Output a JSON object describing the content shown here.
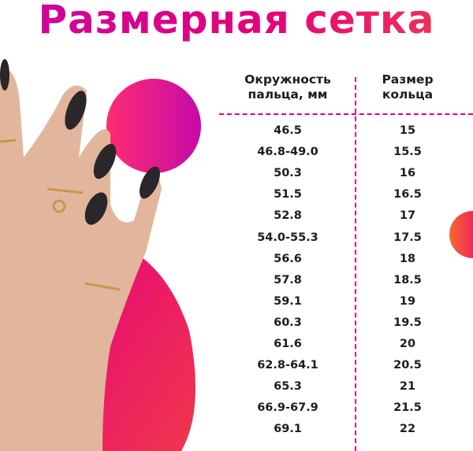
{
  "title": "Размерная сетка",
  "table": {
    "headers": [
      "Окружность пальца, мм",
      "Размер кольца"
    ],
    "header_lines": [
      [
        "Окружность",
        "пальца, мм"
      ],
      [
        "Размер",
        "кольца"
      ]
    ],
    "rows": [
      [
        "46.5",
        "15"
      ],
      [
        "46.8-49.0",
        "15.5"
      ],
      [
        "50.3",
        "16"
      ],
      [
        "51.5",
        "16.5"
      ],
      [
        "52.8",
        "17"
      ],
      [
        "54.0-55.3",
        "17.5"
      ],
      [
        "56.6",
        "18"
      ],
      [
        "57.8",
        "18.5"
      ],
      [
        "59.1",
        "19"
      ],
      [
        "60.3",
        "19.5"
      ],
      [
        "61.6",
        "20"
      ],
      [
        "62.8-64.1",
        "20.5"
      ],
      [
        "65.3",
        "21"
      ],
      [
        "66.9-67.9",
        "21.5"
      ],
      [
        "69.1",
        "22"
      ]
    ]
  },
  "colors": {
    "accent": "#e6007e",
    "gradient_start": "#c8069f",
    "gradient_end": "#ee3a52",
    "text": "#1d1d1d"
  }
}
